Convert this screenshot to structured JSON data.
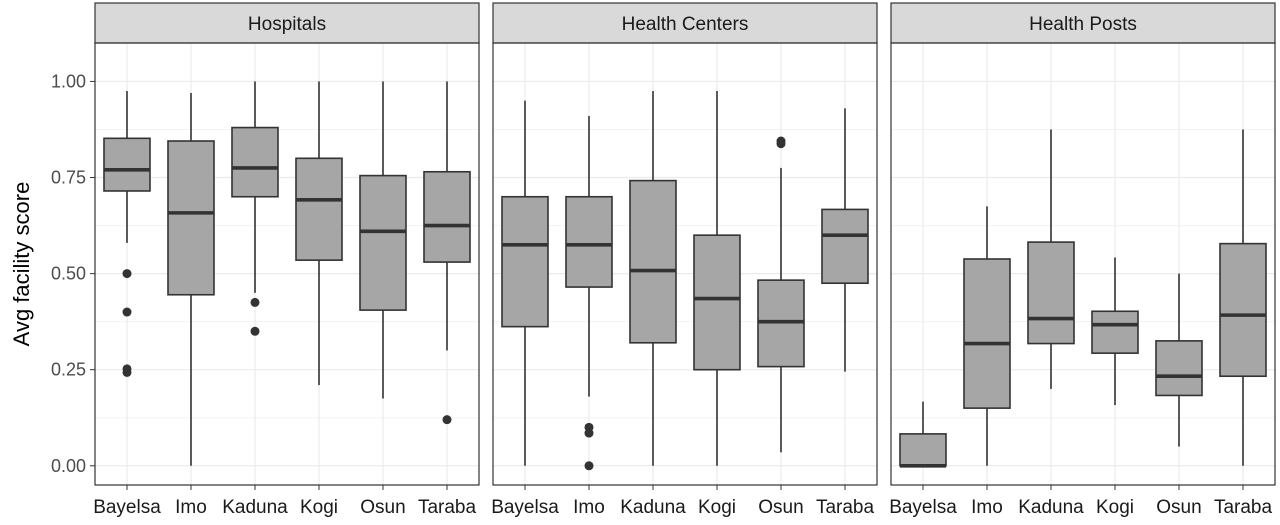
{
  "chart_data": {
    "type": "boxplot",
    "ylabel": "Avg facility score",
    "ylim": [
      -0.05,
      1.1
    ],
    "yticks": [
      "0.00",
      "0.25",
      "0.50",
      "0.75",
      "1.00"
    ],
    "yticks_values": [
      0,
      0.25,
      0.5,
      0.75,
      1.0
    ],
    "grid": true,
    "colors": {
      "box_fill": "#a6a6a6",
      "box_stroke": "#333333",
      "strip_fill": "#d9d9d9",
      "grid": "#ebebeb"
    },
    "categories": [
      "Bayelsa",
      "Imo",
      "Kaduna",
      "Kogi",
      "Osun",
      "Taraba"
    ],
    "panels": [
      {
        "name": "Hospitals",
        "boxes": [
          {
            "category": "Bayelsa",
            "lower_whisker": 0.58,
            "q1": 0.715,
            "median": 0.77,
            "q3": 0.852,
            "upper_whisker": 0.975,
            "outliers": [
              0.5,
              0.4,
              0.252,
              0.243
            ]
          },
          {
            "category": "Imo",
            "lower_whisker": 0.0,
            "q1": 0.445,
            "median": 0.658,
            "q3": 0.845,
            "upper_whisker": 0.97,
            "outliers": []
          },
          {
            "category": "Kaduna",
            "lower_whisker": 0.45,
            "q1": 0.7,
            "median": 0.775,
            "q3": 0.88,
            "upper_whisker": 1.0,
            "outliers": [
              0.425,
              0.35
            ]
          },
          {
            "category": "Kogi",
            "lower_whisker": 0.21,
            "q1": 0.535,
            "median": 0.692,
            "q3": 0.8,
            "upper_whisker": 1.0,
            "outliers": []
          },
          {
            "category": "Osun",
            "lower_whisker": 0.175,
            "q1": 0.405,
            "median": 0.61,
            "q3": 0.755,
            "upper_whisker": 1.0,
            "outliers": []
          },
          {
            "category": "Taraba",
            "lower_whisker": 0.3,
            "q1": 0.53,
            "median": 0.625,
            "q3": 0.765,
            "upper_whisker": 1.0,
            "outliers": [
              0.12
            ]
          }
        ]
      },
      {
        "name": "Health Centers",
        "boxes": [
          {
            "category": "Bayelsa",
            "lower_whisker": 0.0,
            "q1": 0.362,
            "median": 0.575,
            "q3": 0.7,
            "upper_whisker": 0.95,
            "outliers": []
          },
          {
            "category": "Imo",
            "lower_whisker": 0.18,
            "q1": 0.465,
            "median": 0.575,
            "q3": 0.7,
            "upper_whisker": 0.91,
            "outliers": [
              0.1,
              0.085,
              0.0
            ]
          },
          {
            "category": "Kaduna",
            "lower_whisker": 0.0,
            "q1": 0.32,
            "median": 0.508,
            "q3": 0.742,
            "upper_whisker": 0.975,
            "outliers": []
          },
          {
            "category": "Kogi",
            "lower_whisker": 0.0,
            "q1": 0.25,
            "median": 0.435,
            "q3": 0.6,
            "upper_whisker": 0.975,
            "outliers": []
          },
          {
            "category": "Osun",
            "lower_whisker": 0.035,
            "q1": 0.258,
            "median": 0.375,
            "q3": 0.483,
            "upper_whisker": 0.775,
            "outliers": [
              0.845,
              0.838
            ]
          },
          {
            "category": "Taraba",
            "lower_whisker": 0.245,
            "q1": 0.475,
            "median": 0.6,
            "q3": 0.667,
            "upper_whisker": 0.93,
            "outliers": []
          }
        ]
      },
      {
        "name": "Health Posts",
        "boxes": [
          {
            "category": "Bayelsa",
            "lower_whisker": 0.0,
            "q1": 0.0,
            "median": 0.0,
            "q3": 0.083,
            "upper_whisker": 0.167,
            "outliers": []
          },
          {
            "category": "Imo",
            "lower_whisker": 0.0,
            "q1": 0.15,
            "median": 0.318,
            "q3": 0.538,
            "upper_whisker": 0.675,
            "outliers": []
          },
          {
            "category": "Kaduna",
            "lower_whisker": 0.2,
            "q1": 0.318,
            "median": 0.383,
            "q3": 0.582,
            "upper_whisker": 0.875,
            "outliers": []
          },
          {
            "category": "Kogi",
            "lower_whisker": 0.158,
            "q1": 0.293,
            "median": 0.367,
            "q3": 0.402,
            "upper_whisker": 0.542,
            "outliers": []
          },
          {
            "category": "Osun",
            "lower_whisker": 0.05,
            "q1": 0.183,
            "median": 0.233,
            "q3": 0.325,
            "upper_whisker": 0.5,
            "outliers": []
          },
          {
            "category": "Taraba",
            "lower_whisker": 0.0,
            "q1": 0.233,
            "median": 0.392,
            "q3": 0.578,
            "upper_whisker": 0.875,
            "outliers": []
          }
        ]
      }
    ]
  }
}
